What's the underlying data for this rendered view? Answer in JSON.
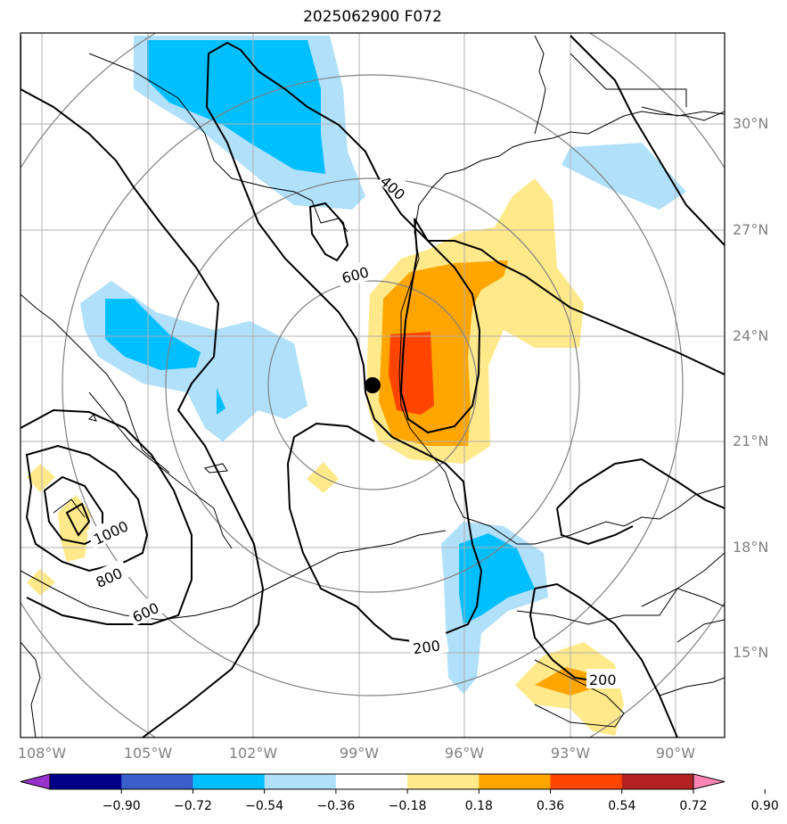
{
  "title": "2025062900 F072",
  "lat_labels": [
    "30°N",
    "27°N",
    "24°N",
    "21°N",
    "18°N",
    "15°N"
  ],
  "lon_labels": [
    "108°W",
    "105°W",
    "102°W",
    "99°W",
    "96°W",
    "93°W",
    "90°W"
  ],
  "contour_labels": [
    "400",
    "600",
    "1000",
    "800",
    "600",
    "200",
    "200"
  ],
  "colorbar": {
    "ticks": [
      "−0.90",
      "−0.72",
      "−0.54",
      "−0.36",
      "−0.18",
      "0.18",
      "0.36",
      "0.54",
      "0.72",
      "0.90"
    ],
    "colors": [
      "#9932cc",
      "#00008b",
      "#3a5fcd",
      "#00bfff",
      "#b0e0fa",
      "#ffffff",
      "#ffe98a",
      "#ffa500",
      "#ff4500",
      "#b22222",
      "#ff86b4"
    ]
  },
  "marker": "storm-center-dot"
}
